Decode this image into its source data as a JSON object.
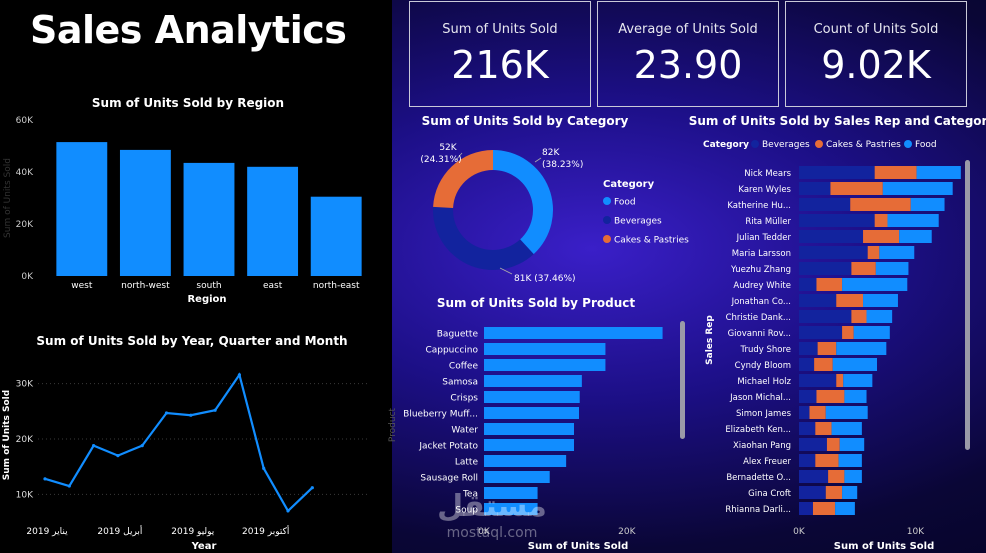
{
  "page": {
    "title": "Sales Analytics"
  },
  "kpis": [
    {
      "label": "Sum of Units Sold",
      "value": "216K"
    },
    {
      "label": "Average of Units Sold",
      "value": "23.90"
    },
    {
      "label": "Count of Units Sold",
      "value": "9.02K"
    }
  ],
  "watermark": {
    "arabic": "مستقل",
    "latin": "mostaql.com"
  },
  "chart_data": [
    {
      "id": "region",
      "type": "bar",
      "title": "Sum of Units Sold by Region",
      "xlabel": "Region",
      "ylabel": "Sum of Units Sold",
      "categories": [
        "west",
        "north-west",
        "south",
        "east",
        "north-east"
      ],
      "values": [
        51500,
        48500,
        43500,
        42000,
        30500
      ],
      "ylim": [
        0,
        60000
      ],
      "yticks": [
        {
          "v": 0,
          "t": "0K"
        },
        {
          "v": 20000,
          "t": "20K"
        },
        {
          "v": 40000,
          "t": "40K"
        },
        {
          "v": 60000,
          "t": "60K"
        }
      ],
      "color": "#118dff"
    },
    {
      "id": "timeline",
      "type": "line",
      "title": "Sum of Units Sold by Year, Quarter and Month",
      "xlabel": "Year",
      "ylabel": "Sum of Units Sold",
      "values": [
        12800,
        11500,
        18800,
        17000,
        18800,
        24700,
        24300,
        25200,
        31600,
        14700,
        7000,
        11200
      ],
      "ylim": [
        5000,
        35000
      ],
      "yticks": [
        {
          "v": 10000,
          "t": "10K"
        },
        {
          "v": 20000,
          "t": "20K"
        },
        {
          "v": 30000,
          "t": "30K"
        }
      ],
      "xticks": [
        {
          "i": 0,
          "t": "2019 يناير"
        },
        {
          "i": 3,
          "t": "2019 أبريل"
        },
        {
          "i": 6,
          "t": "2019 يوليو"
        },
        {
          "i": 9,
          "t": "2019 أكتوبر"
        }
      ],
      "color": "#118dff"
    },
    {
      "id": "category",
      "type": "pie",
      "title": "Sum of Units Sold by Category",
      "legend_title": "Category",
      "slices": [
        {
          "name": "Food",
          "value": 82,
          "label": "82K",
          "pct": "(38.23%)",
          "color": "#118dff"
        },
        {
          "name": "Beverages",
          "value": 81,
          "label": "81K (37.46%)",
          "pct": "",
          "color": "#12239e"
        },
        {
          "name": "Cakes & Pastries",
          "value": 52,
          "label": "52K",
          "pct": "(24.31%)",
          "color": "#e66c37"
        }
      ]
    },
    {
      "id": "product",
      "type": "bar",
      "orientation": "horizontal",
      "title": "Sum of Units Sold by Product",
      "xlabel": "Sum of Units Sold",
      "ylabel": "Product",
      "categories": [
        "Baguette",
        "Cappuccino",
        "Coffee",
        "Samosa",
        "Crisps",
        "Blueberry Muff...",
        "Water",
        "Jacket Potato",
        "Latte",
        "Sausage Roll",
        "Tea",
        "Soup"
      ],
      "values": [
        25000,
        17000,
        17000,
        13700,
        13400,
        13300,
        12600,
        12600,
        11500,
        9200,
        7500,
        7500
      ],
      "xlim": [
        0,
        28000
      ],
      "xticks": [
        {
          "v": 0,
          "t": "0K"
        },
        {
          "v": 20000,
          "t": "20K"
        }
      ],
      "color": "#118dff"
    },
    {
      "id": "salesrep",
      "type": "bar",
      "orientation": "horizontal",
      "stacked": true,
      "title": "Sum of Units Sold by Sales Rep and Category",
      "legend_title": "Category",
      "xlabel": "Sum of Units Sold",
      "ylabel": "Sales Rep",
      "categories": [
        "Nick Mears",
        "Karen Wyles",
        "Katherine Hu...",
        "Rita Müller",
        "Julian Tedder",
        "Maria Larsson",
        "Yuezhu Zhang",
        "Audrey White",
        "Jonathan Co...",
        "Christie Dank...",
        "Giovanni Rov...",
        "Trudy Shore",
        "Cyndy Bloom",
        "Michael Holz",
        "Jason Michal...",
        "Simon James",
        "Elizabeth Ken...",
        "Xiaohan Pang",
        "Alex Freuer",
        "Bernadette O...",
        "Gina Croft",
        "Rhianna Darli..."
      ],
      "series": [
        {
          "name": "Beverages",
          "color": "#12239e",
          "values": [
            6500,
            2700,
            4400,
            6500,
            5500,
            5900,
            4500,
            1500,
            3200,
            4500,
            3700,
            1600,
            1300,
            3200,
            1500,
            900,
            1400,
            2400,
            1400,
            2500,
            2300,
            1200
          ]
        },
        {
          "name": "Cakes & Pastries",
          "color": "#e66c37",
          "values": [
            3600,
            4500,
            5200,
            1100,
            3100,
            1000,
            2100,
            2200,
            2300,
            1300,
            1000,
            1600,
            1600,
            600,
            2400,
            1400,
            1400,
            1100,
            2000,
            1400,
            1400,
            1900
          ]
        },
        {
          "name": "Food",
          "color": "#118dff",
          "values": [
            3800,
            6000,
            2900,
            4400,
            2800,
            3000,
            2800,
            5600,
            3000,
            2200,
            3100,
            4300,
            3800,
            2500,
            1900,
            3600,
            2600,
            2100,
            2000,
            1500,
            1300,
            1700
          ]
        }
      ],
      "xlim": [
        0,
        14000
      ],
      "xticks": [
        {
          "v": 0,
          "t": "0K"
        },
        {
          "v": 10000,
          "t": "10K"
        }
      ]
    }
  ]
}
